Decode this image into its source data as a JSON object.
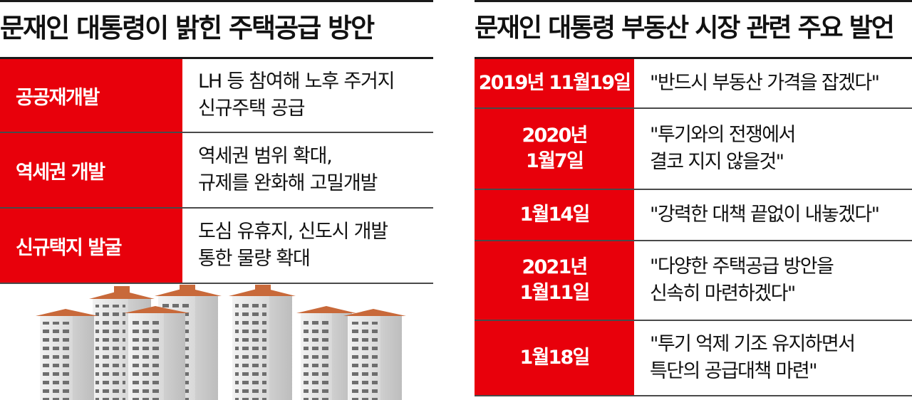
{
  "left": {
    "title": "문재인 대통령이 밝힌 주택공급 방안",
    "rows": [
      {
        "label": "공공재개발",
        "value": "LH 등 참여해 노후 주거지\n신규주택 공급"
      },
      {
        "label": "역세권 개발",
        "value": "역세권 범위 확대,\n규제를 완화해 고밀개발"
      },
      {
        "label": "신규택지 발굴",
        "value": "도심 유휴지, 신도시 개발\n통한 물량 확대"
      }
    ]
  },
  "right": {
    "title": "문재인 대통령 부동산 시장 관련 주요 발언",
    "rows": [
      {
        "date": "2019년 11월19일",
        "quote": "\"반드시 부동산 가격을 잡겠다\""
      },
      {
        "date": "2020년\n1월7일",
        "quote": "\"투기와의 전쟁에서\n결코 지지 않을것\""
      },
      {
        "date": "1월14일",
        "quote": "\"강력한 대책 끝없이 내놓겠다\""
      },
      {
        "date": "2021년\n1월11일",
        "quote": "\"다양한 주택공급 방안을\n신속히 마련하겠다\""
      },
      {
        "date": "1월18일",
        "quote": "\"투기 억제 기조 유지하면서\n특단의 공급대책 마련\""
      }
    ]
  },
  "colors": {
    "accent_red": "#e8000b",
    "rule_dark": "#1a1a1a",
    "text": "#111111"
  },
  "illustration": "apartment-buildings-icon"
}
